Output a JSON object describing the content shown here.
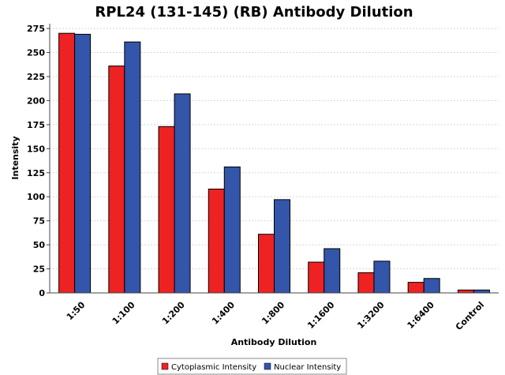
{
  "chart_data": {
    "type": "bar",
    "title": "RPL24 (131-145) (RB) Antibody Dilution",
    "xlabel": "Antibody Dilution",
    "ylabel": "Intensity",
    "categories": [
      "1:50",
      "1:100",
      "1:200",
      "1:400",
      "1:800",
      "1:1600",
      "1:3200",
      "1:6400",
      "Control"
    ],
    "series": [
      {
        "name": "Cytoplasmic Intensity",
        "color": "#ee2222",
        "values": [
          270,
          236,
          173,
          108,
          61,
          32,
          21,
          11,
          3
        ]
      },
      {
        "name": "Nuclear Intensity",
        "color": "#3355aa",
        "values": [
          269,
          261,
          207,
          131,
          97,
          46,
          33,
          15,
          3
        ]
      }
    ],
    "ylim": [
      0,
      280
    ],
    "yticks": [
      0,
      25,
      50,
      75,
      100,
      125,
      150,
      175,
      200,
      225,
      250,
      275
    ],
    "grid": true,
    "legend_position": "bottom"
  }
}
